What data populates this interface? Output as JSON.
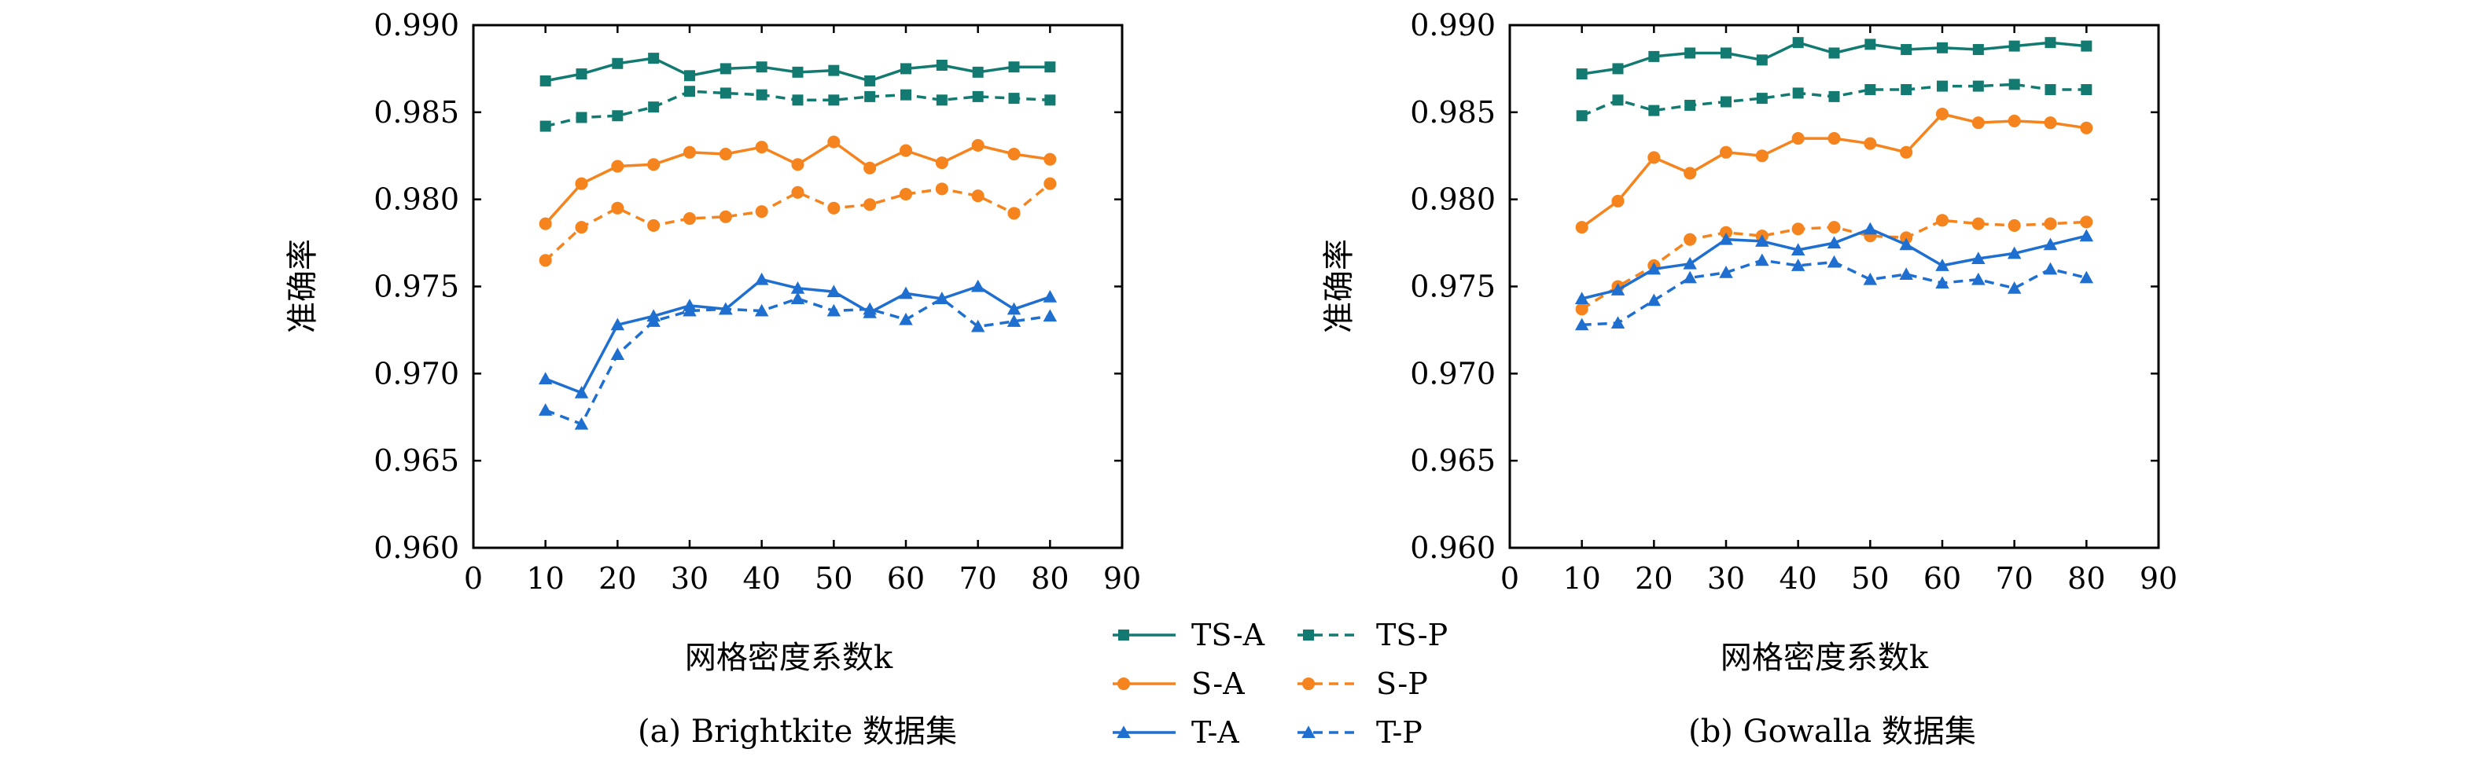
{
  "legend": {
    "items": [
      {
        "label": "TS-A",
        "color": "#127a70",
        "marker": "square",
        "dash": false
      },
      {
        "label": "TS-P",
        "color": "#127a70",
        "marker": "square",
        "dash": true
      },
      {
        "label": "S-A",
        "color": "#f5841f",
        "marker": "circle",
        "dash": false
      },
      {
        "label": "S-P",
        "color": "#f5841f",
        "marker": "circle",
        "dash": true
      },
      {
        "label": "T-A",
        "color": "#1f6fd0",
        "marker": "triangle",
        "dash": false
      },
      {
        "label": "T-P",
        "color": "#1f6fd0",
        "marker": "triangle",
        "dash": true
      }
    ]
  },
  "chart_data": [
    {
      "type": "line",
      "caption": "(a) Brightkite 数据集",
      "xlabel": "网格密度系数k",
      "ylabel": "准确率",
      "xlim": [
        0,
        90
      ],
      "ylim": [
        0.96,
        0.99
      ],
      "xticks": [
        "0",
        "10",
        "20",
        "30",
        "40",
        "50",
        "60",
        "70",
        "80",
        "90"
      ],
      "yticks": [
        "0.960",
        "0.965",
        "0.970",
        "0.975",
        "0.980",
        "0.985",
        "0.990"
      ],
      "grid": false,
      "x": [
        10,
        15,
        20,
        25,
        30,
        35,
        40,
        45,
        50,
        55,
        60,
        65,
        70,
        75,
        80
      ],
      "series": [
        {
          "name": "TS-A",
          "values": [
            0.9868,
            0.9872,
            0.9878,
            0.9881,
            0.9871,
            0.9875,
            0.9876,
            0.9873,
            0.9874,
            0.9868,
            0.9875,
            0.9877,
            0.9873,
            0.9876,
            0.9876
          ]
        },
        {
          "name": "TS-P",
          "values": [
            0.9842,
            0.9847,
            0.9848,
            0.9853,
            0.9862,
            0.9861,
            0.986,
            0.9857,
            0.9857,
            0.9859,
            0.986,
            0.9857,
            0.9859,
            0.9858,
            0.9857
          ]
        },
        {
          "name": "S-A",
          "values": [
            0.9786,
            0.9809,
            0.9819,
            0.982,
            0.9827,
            0.9826,
            0.983,
            0.982,
            0.9833,
            0.9818,
            0.9828,
            0.9821,
            0.9831,
            0.9826,
            0.9823
          ]
        },
        {
          "name": "S-P",
          "values": [
            0.9765,
            0.9784,
            0.9795,
            0.9785,
            0.9789,
            0.979,
            0.9793,
            0.9804,
            0.9795,
            0.9797,
            0.9803,
            0.9806,
            0.9802,
            0.9792,
            0.9809
          ]
        },
        {
          "name": "T-A",
          "values": [
            0.9697,
            0.9689,
            0.9728,
            0.9733,
            0.9739,
            0.9737,
            0.9754,
            0.9749,
            0.9747,
            0.9735,
            0.9746,
            0.9743,
            0.975,
            0.9737,
            0.9744
          ]
        },
        {
          "name": "T-P",
          "values": [
            0.9679,
            0.9671,
            0.9711,
            0.973,
            0.9736,
            0.9737,
            0.9736,
            0.9743,
            0.9736,
            0.9737,
            0.9731,
            0.9743,
            0.9727,
            0.973,
            0.9733
          ]
        }
      ]
    },
    {
      "type": "line",
      "caption": "(b) Gowalla 数据集",
      "xlabel": "网格密度系数k",
      "ylabel": "准确率",
      "xlim": [
        0,
        90
      ],
      "ylim": [
        0.96,
        0.99
      ],
      "xticks": [
        "0",
        "10",
        "20",
        "30",
        "40",
        "50",
        "60",
        "70",
        "80",
        "90"
      ],
      "yticks": [
        "0.960",
        "0.965",
        "0.970",
        "0.975",
        "0.980",
        "0.985",
        "0.990"
      ],
      "grid": false,
      "x": [
        10,
        15,
        20,
        25,
        30,
        35,
        40,
        45,
        50,
        55,
        60,
        65,
        70,
        75,
        80
      ],
      "series": [
        {
          "name": "TS-A",
          "values": [
            0.9872,
            0.9875,
            0.9882,
            0.9884,
            0.9884,
            0.988,
            0.989,
            0.9884,
            0.9889,
            0.9886,
            0.9887,
            0.9886,
            0.9888,
            0.989,
            0.9888
          ]
        },
        {
          "name": "TS-P",
          "values": [
            0.9848,
            0.9857,
            0.9851,
            0.9854,
            0.9856,
            0.9858,
            0.9861,
            0.9859,
            0.9863,
            0.9863,
            0.9865,
            0.9865,
            0.9866,
            0.9863,
            0.9863
          ]
        },
        {
          "name": "S-A",
          "values": [
            0.9784,
            0.9799,
            0.9824,
            0.9815,
            0.9827,
            0.9825,
            0.9835,
            0.9835,
            0.9832,
            0.9827,
            0.9849,
            0.9844,
            0.9845,
            0.9844,
            0.9841
          ]
        },
        {
          "name": "S-P",
          "values": [
            0.9737,
            0.975,
            0.9762,
            0.9777,
            0.9781,
            0.9779,
            0.9783,
            0.9784,
            0.9779,
            0.9778,
            0.9788,
            0.9786,
            0.9785,
            0.9786,
            0.9787
          ]
        },
        {
          "name": "T-A",
          "values": [
            0.9743,
            0.9748,
            0.976,
            0.9763,
            0.9777,
            0.9776,
            0.9771,
            0.9775,
            0.9783,
            0.9774,
            0.9762,
            0.9766,
            0.9769,
            0.9774,
            0.9779
          ]
        },
        {
          "name": "T-P",
          "values": [
            0.9728,
            0.9729,
            0.9742,
            0.9755,
            0.9758,
            0.9765,
            0.9762,
            0.9764,
            0.9754,
            0.9757,
            0.9752,
            0.9754,
            0.9749,
            0.976,
            0.9755
          ]
        }
      ]
    }
  ]
}
